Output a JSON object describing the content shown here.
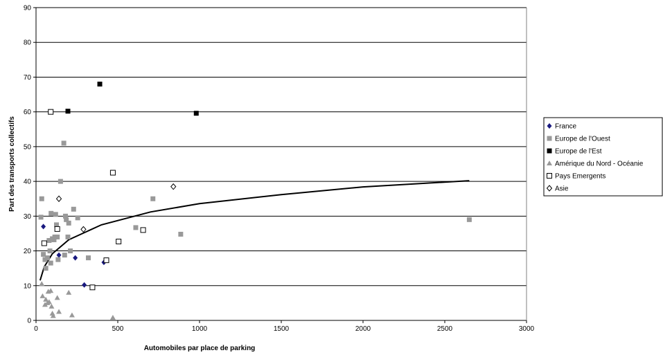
{
  "chart_data": {
    "type": "scatter",
    "xlabel": "Automobiles par place de parking",
    "ylabel": "Part des transports collectifs",
    "xlim": [
      0,
      3000
    ],
    "ylim": [
      0,
      90
    ],
    "xticks": [
      0,
      500,
      1000,
      1500,
      2000,
      2500,
      3000
    ],
    "yticks": [
      0,
      10,
      20,
      30,
      40,
      50,
      60,
      70,
      80,
      90
    ],
    "grid": "horizontal",
    "legend_position": "right",
    "series": [
      {
        "name": "France",
        "marker": "diamond-filled",
        "color": "#1a1a80",
        "points": [
          [
            45,
            27
          ],
          [
            140,
            18.8
          ],
          [
            240,
            18
          ],
          [
            295,
            10.2
          ],
          [
            415,
            16.7
          ]
        ]
      },
      {
        "name": "Europe de l'Ouest",
        "marker": "square-filled",
        "color": "#999999",
        "points": [
          [
            35,
            35
          ],
          [
            30,
            29.7
          ],
          [
            45,
            19
          ],
          [
            55,
            17.5
          ],
          [
            60,
            15
          ],
          [
            70,
            18
          ],
          [
            80,
            23
          ],
          [
            85,
            20
          ],
          [
            90,
            16.5
          ],
          [
            92,
            30.8
          ],
          [
            100,
            23.5
          ],
          [
            110,
            23.2
          ],
          [
            115,
            24
          ],
          [
            120,
            30.5
          ],
          [
            125,
            27.5
          ],
          [
            130,
            24
          ],
          [
            135,
            17.5
          ],
          [
            150,
            40
          ],
          [
            170,
            51
          ],
          [
            175,
            18.8
          ],
          [
            180,
            30
          ],
          [
            185,
            29
          ],
          [
            195,
            24
          ],
          [
            200,
            28
          ],
          [
            210,
            20
          ],
          [
            230,
            32
          ],
          [
            255,
            29.5
          ],
          [
            320,
            18
          ],
          [
            610,
            26.7
          ],
          [
            715,
            35
          ],
          [
            885,
            24.8
          ],
          [
            2650,
            29
          ]
        ]
      },
      {
        "name": "Europe de l'Est",
        "marker": "square-filled",
        "color": "#000000",
        "points": [
          [
            390,
            68
          ],
          [
            195,
            60.2
          ],
          [
            980,
            59.6
          ]
        ]
      },
      {
        "name": "Amérique du Nord - Océanie",
        "marker": "triangle-filled",
        "color": "#999999",
        "points": [
          [
            35,
            10.5
          ],
          [
            40,
            7
          ],
          [
            55,
            4.5
          ],
          [
            60,
            6
          ],
          [
            70,
            5
          ],
          [
            75,
            8.3
          ],
          [
            80,
            5.3
          ],
          [
            90,
            8.5
          ],
          [
            95,
            4
          ],
          [
            100,
            2
          ],
          [
            105,
            1.3
          ],
          [
            130,
            6.5
          ],
          [
            140,
            2.5
          ],
          [
            200,
            8
          ],
          [
            220,
            1.5
          ],
          [
            470,
            0.8
          ]
        ]
      },
      {
        "name": "Pays Emergents",
        "marker": "square-open",
        "color": "#000000",
        "points": [
          [
            90,
            60
          ],
          [
            50,
            22.2
          ],
          [
            130,
            26.3
          ],
          [
            345,
            9.5
          ],
          [
            430,
            17.3
          ],
          [
            470,
            42.5
          ],
          [
            505,
            22.7
          ],
          [
            655,
            26
          ]
        ]
      },
      {
        "name": "Asie",
        "marker": "diamond-open",
        "color": "#000000",
        "points": [
          [
            140,
            35
          ],
          [
            290,
            26.2
          ],
          [
            840,
            38.5
          ]
        ]
      }
    ],
    "trendline": {
      "type": "logarithmic",
      "color": "#000000",
      "points": [
        [
          25,
          11.5
        ],
        [
          50,
          15.4
        ],
        [
          100,
          19.2
        ],
        [
          200,
          23.2
        ],
        [
          400,
          27.5
        ],
        [
          700,
          31.2
        ],
        [
          1000,
          33.6
        ],
        [
          1500,
          36.2
        ],
        [
          2000,
          38.4
        ],
        [
          2650,
          40.2
        ]
      ]
    }
  }
}
